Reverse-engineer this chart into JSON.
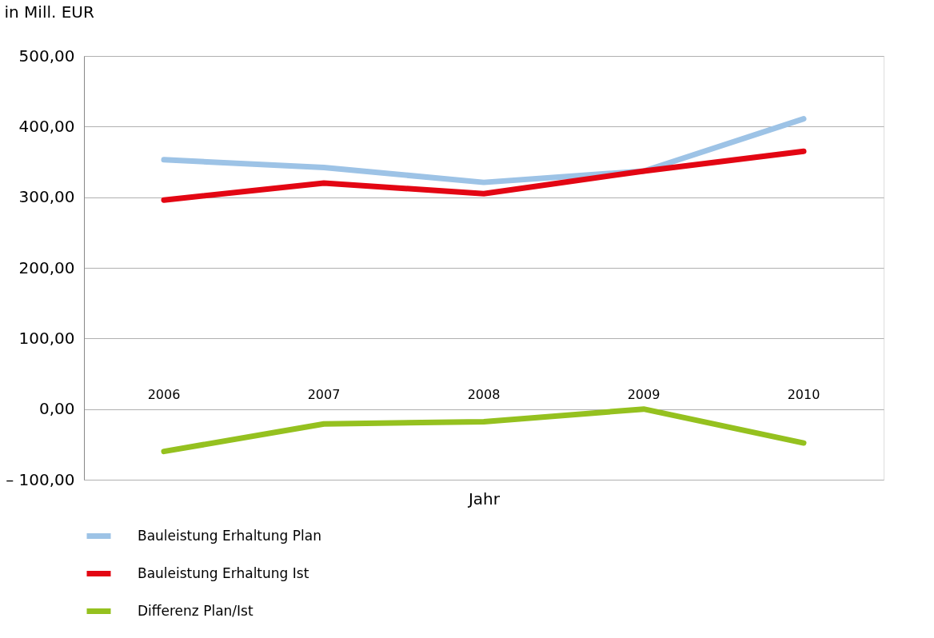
{
  "chart_data": {
    "type": "line",
    "xlabel": "Jahr",
    "ylabel": "in Mill. EUR",
    "categories": [
      "2006",
      "2007",
      "2008",
      "2009",
      "2010"
    ],
    "series": [
      {
        "name": "Bauleistung Erhaltung Plan",
        "color": "#9dc3e6",
        "values": [
          353,
          342,
          321,
          337,
          411
        ]
      },
      {
        "name": "Bauleistung Erhaltung Ist",
        "color": "#e30613",
        "values": [
          296,
          320,
          305,
          337,
          365
        ]
      },
      {
        "name": "Differenz Plan/Ist",
        "color": "#95c11f",
        "values": [
          -60,
          -21,
          -18,
          0,
          -48
        ]
      }
    ],
    "ylim": [
      -100,
      500
    ],
    "yticks": [
      {
        "value": -100,
        "label": "– 100,00"
      },
      {
        "value": 0,
        "label": "0,00"
      },
      {
        "value": 100,
        "label": "100,00"
      },
      {
        "value": 200,
        "label": "200,00"
      },
      {
        "value": 300,
        "label": "300,00"
      },
      {
        "value": 400,
        "label": "400,00"
      },
      {
        "value": 500,
        "label": "500,00"
      }
    ],
    "grid": "y",
    "legend": "bottom",
    "marker": "none",
    "line_style": "solid"
  }
}
